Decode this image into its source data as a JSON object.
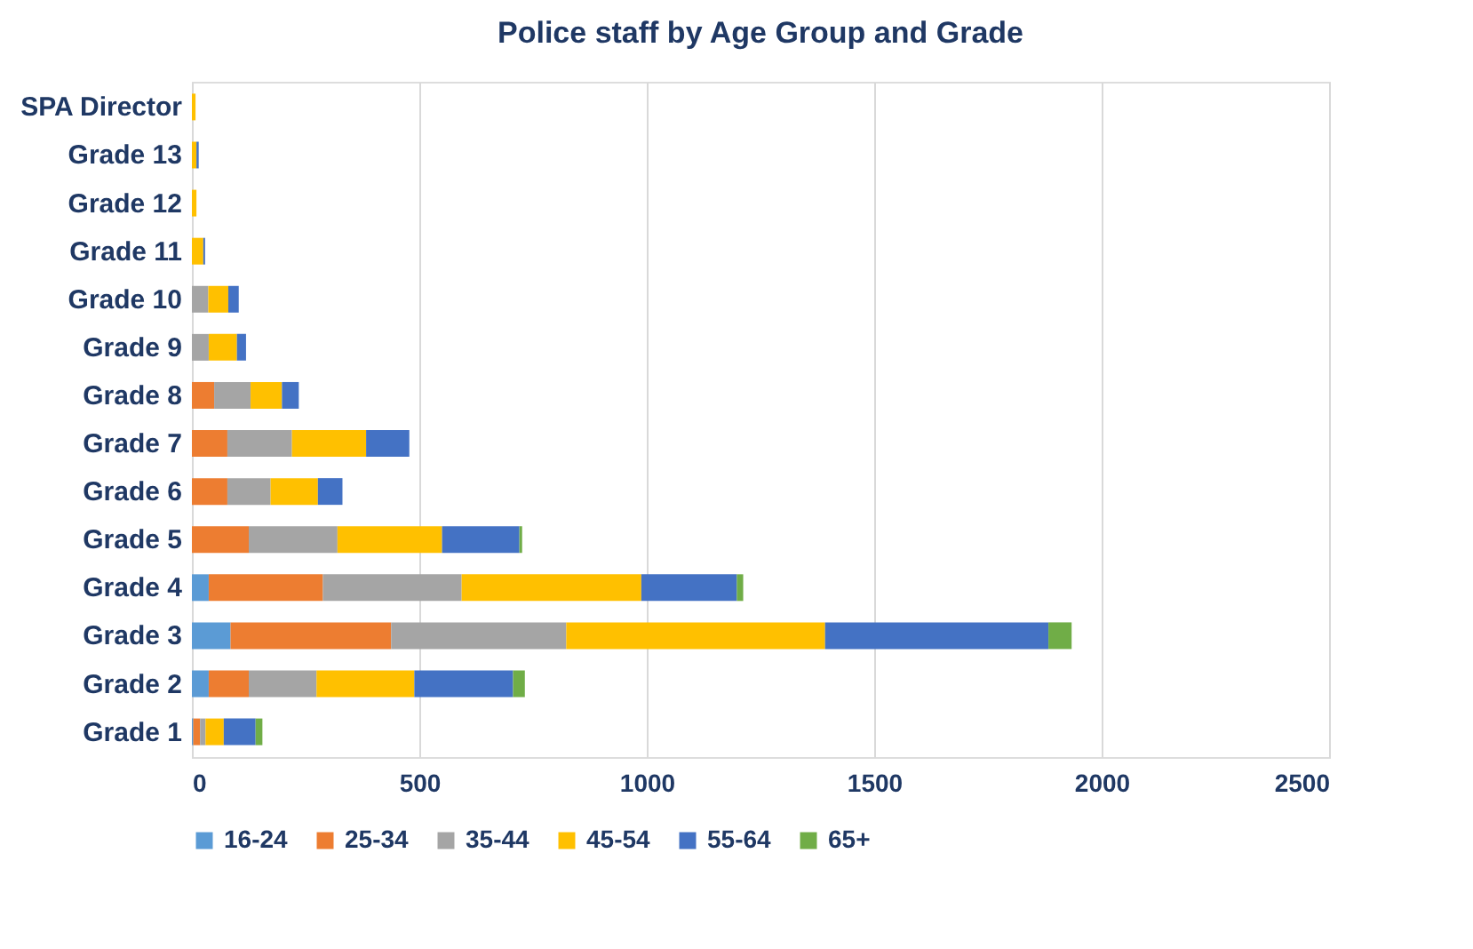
{
  "chart_data": {
    "type": "bar",
    "orientation": "horizontal",
    "stacked": true,
    "title": "Police staff by Age Group and Grade",
    "categories": [
      "SPA Director",
      "Grade 13",
      "Grade 12",
      "Grade 11",
      "Grade 10",
      "Grade 9",
      "Grade 8",
      "Grade 7",
      "Grade 6",
      "Grade 5",
      "Grade 4",
      "Grade 3",
      "Grade 2",
      "Grade 1"
    ],
    "series": [
      {
        "name": "16-24",
        "color": "#5b9bd5",
        "values": [
          null,
          null,
          null,
          null,
          null,
          null,
          null,
          null,
          null,
          null,
          37,
          85,
          37,
          3
        ]
      },
      {
        "name": "25-34",
        "color": "#ed7d31",
        "values": [
          null,
          null,
          null,
          null,
          null,
          null,
          49,
          78,
          78,
          125,
          251,
          353,
          88,
          15
        ]
      },
      {
        "name": "35-44",
        "color": "#a5a5a5",
        "values": [
          null,
          null,
          null,
          null,
          36,
          37,
          80,
          142,
          95,
          195,
          305,
          385,
          149,
          12
        ]
      },
      {
        "name": "45-54",
        "color": "#ffc000",
        "values": [
          8,
          10,
          10,
          25,
          44,
          62,
          69,
          163,
          104,
          230,
          395,
          569,
          215,
          40
        ]
      },
      {
        "name": "55-64",
        "color": "#4472c4",
        "values": [
          null,
          5,
          null,
          4,
          23,
          20,
          37,
          95,
          54,
          170,
          210,
          491,
          217,
          70
        ]
      },
      {
        "name": "65+",
        "color": "#70ad47",
        "values": [
          null,
          null,
          null,
          null,
          null,
          null,
          null,
          null,
          null,
          6,
          14,
          51,
          26,
          15
        ]
      }
    ],
    "xlim": [
      0,
      2500
    ],
    "xticks": [
      0,
      500,
      1000,
      1500,
      2000,
      2500
    ],
    "grid": "x",
    "legend": "bottom"
  }
}
